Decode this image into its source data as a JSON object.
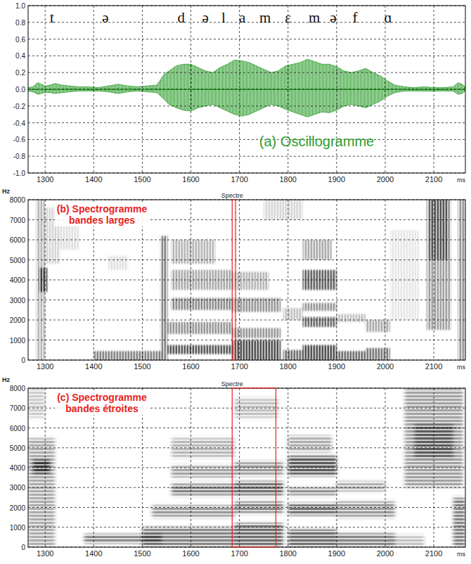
{
  "chart_data": [
    {
      "type": "area",
      "title": "(a) Oscillogramme",
      "color": "#2f9e2f",
      "xlabel": "ms",
      "xlim": [
        1265,
        2165
      ],
      "xticks": [
        1300,
        1400,
        1500,
        1600,
        1700,
        1800,
        1900,
        2000,
        2100
      ],
      "ylim": [
        -1,
        1
      ],
      "yticks": [
        {
          "value": 1,
          "label": "1.0"
        },
        0.8,
        0.6,
        0.4,
        0.2,
        {
          "value": 0,
          "label": "0.0"
        },
        -0.2,
        -0.4,
        -0.6,
        -0.8,
        {
          "value": -1,
          "label": "-1.0"
        }
      ],
      "grid": true,
      "x": [
        1265,
        1275,
        1285,
        1292,
        1300,
        1310,
        1320,
        1335,
        1350,
        1370,
        1390,
        1410,
        1430,
        1450,
        1470,
        1490,
        1510,
        1530,
        1545,
        1555,
        1570,
        1585,
        1600,
        1615,
        1630,
        1645,
        1660,
        1675,
        1690,
        1705,
        1720,
        1735,
        1750,
        1765,
        1780,
        1795,
        1810,
        1825,
        1840,
        1855,
        1870,
        1885,
        1900,
        1915,
        1930,
        1945,
        1960,
        1975,
        1990,
        2005,
        2020,
        2040,
        2060,
        2080,
        2100,
        2120,
        2140,
        2150,
        2158,
        2165
      ],
      "series": [
        {
          "values": [
            0.02,
            0.03,
            0.08,
            0.06,
            0.04,
            0.05,
            0.07,
            0.05,
            0.04,
            0.03,
            0.03,
            0.02,
            0.04,
            0.06,
            0.04,
            0.03,
            0.04,
            0.05,
            0.18,
            0.22,
            0.28,
            0.3,
            0.3,
            0.26,
            0.22,
            0.2,
            0.26,
            0.3,
            0.35,
            0.34,
            0.32,
            0.28,
            0.24,
            0.2,
            0.22,
            0.28,
            0.3,
            0.32,
            0.36,
            0.33,
            0.3,
            0.3,
            0.27,
            0.22,
            0.2,
            0.22,
            0.25,
            0.2,
            0.16,
            0.1,
            0.05,
            0.03,
            0.02,
            0.03,
            0.02,
            0.02,
            0.03,
            0.08,
            0.06,
            0.03
          ]
        },
        {
          "values": [
            -0.02,
            -0.03,
            -0.06,
            -0.05,
            -0.04,
            -0.04,
            -0.05,
            -0.04,
            -0.03,
            -0.02,
            -0.02,
            -0.02,
            -0.03,
            -0.05,
            -0.03,
            -0.02,
            -0.03,
            -0.04,
            -0.12,
            -0.18,
            -0.22,
            -0.25,
            -0.26,
            -0.22,
            -0.2,
            -0.18,
            -0.22,
            -0.26,
            -0.3,
            -0.32,
            -0.3,
            -0.26,
            -0.22,
            -0.18,
            -0.2,
            -0.24,
            -0.27,
            -0.3,
            -0.33,
            -0.3,
            -0.27,
            -0.28,
            -0.25,
            -0.2,
            -0.18,
            -0.2,
            -0.22,
            -0.18,
            -0.14,
            -0.08,
            -0.04,
            -0.02,
            -0.02,
            -0.02,
            -0.02,
            -0.02,
            -0.02,
            -0.06,
            -0.05,
            -0.02
          ]
        }
      ],
      "annotations": [
        {
          "text": "t",
          "x": 1314
        },
        {
          "text": "ə",
          "x": 1424
        },
        {
          "text": "d",
          "x": 1580
        },
        {
          "text": "ə",
          "x": 1630
        },
        {
          "text": "l",
          "x": 1667
        },
        {
          "text": "a",
          "x": 1706
        },
        {
          "text": "m",
          "x": 1753
        },
        {
          "text": "ɛ",
          "x": 1800
        },
        {
          "text": "m",
          "x": 1854
        },
        {
          "text": "ə",
          "x": 1893
        },
        {
          "text": "f",
          "x": 1938
        },
        {
          "text": "ɑ",
          "x": 2006
        }
      ]
    },
    {
      "type": "heatmap",
      "title": "(b) Spectrogramme bandes larges",
      "color": "#e8211b",
      "xlabel": "ms",
      "ylabel": "Hz",
      "xlim": [
        1265,
        2165
      ],
      "xticks": [
        1300,
        1400,
        1500,
        1600,
        1700,
        1800,
        1900,
        2000,
        2100
      ],
      "ylim": [
        0,
        8000
      ],
      "yticks": [
        0,
        1000,
        2000,
        3000,
        4000,
        5000,
        6000,
        7000,
        8000
      ],
      "grid": true,
      "annotations": [
        {
          "text": "Spectre",
          "x": 1685
        }
      ],
      "highlight": [
        1685,
        1692
      ],
      "regions": [
        {
          "x": [
            1282,
            1300
          ],
          "y": [
            0,
            8000
          ],
          "level": 0.35
        },
        {
          "x": [
            1288,
            1305
          ],
          "y": [
            3400,
            4600
          ],
          "level": 0.8
        },
        {
          "x": [
            1300,
            1330
          ],
          "y": [
            4800,
            7600
          ],
          "level": 0.2
        },
        {
          "x": [
            1330,
            1370
          ],
          "y": [
            5500,
            7000
          ],
          "level": 0.15
        },
        {
          "x": [
            1400,
            1540
          ],
          "y": [
            0,
            450
          ],
          "level": 0.6
        },
        {
          "x": [
            1430,
            1470
          ],
          "y": [
            4500,
            5200
          ],
          "level": 0.15
        },
        {
          "x": [
            1538,
            1552
          ],
          "y": [
            0,
            6200
          ],
          "level": 0.6
        },
        {
          "x": [
            1552,
            1685
          ],
          "y": [
            300,
            750
          ],
          "level": 0.8
        },
        {
          "x": [
            1552,
            1685
          ],
          "y": [
            1300,
            1900
          ],
          "level": 0.5
        },
        {
          "x": [
            1560,
            1685
          ],
          "y": [
            2500,
            3100
          ],
          "level": 0.55
        },
        {
          "x": [
            1560,
            1685
          ],
          "y": [
            3500,
            4500
          ],
          "level": 0.4
        },
        {
          "x": [
            1560,
            1650
          ],
          "y": [
            4800,
            6000
          ],
          "level": 0.35
        },
        {
          "x": [
            1685,
            1785
          ],
          "y": [
            0,
            1000
          ],
          "level": 0.85
        },
        {
          "x": [
            1685,
            1785
          ],
          "y": [
            1100,
            1600
          ],
          "level": 0.5
        },
        {
          "x": [
            1685,
            1785
          ],
          "y": [
            2400,
            3100
          ],
          "level": 0.5
        },
        {
          "x": [
            1685,
            1760
          ],
          "y": [
            3500,
            4400
          ],
          "level": 0.35
        },
        {
          "x": [
            1750,
            1830
          ],
          "y": [
            7000,
            8000
          ],
          "level": 0.2
        },
        {
          "x": [
            1790,
            1830
          ],
          "y": [
            0,
            500
          ],
          "level": 0.7
        },
        {
          "x": [
            1790,
            1830
          ],
          "y": [
            2000,
            2600
          ],
          "level": 0.3
        },
        {
          "x": [
            1830,
            1900
          ],
          "y": [
            0,
            750
          ],
          "level": 0.85
        },
        {
          "x": [
            1830,
            1900
          ],
          "y": [
            1650,
            2150
          ],
          "level": 0.7
        },
        {
          "x": [
            1830,
            1900
          ],
          "y": [
            2450,
            2850
          ],
          "level": 0.5
        },
        {
          "x": [
            1830,
            1900
          ],
          "y": [
            3500,
            4500
          ],
          "level": 0.75
        },
        {
          "x": [
            1830,
            1890
          ],
          "y": [
            5000,
            6000
          ],
          "level": 0.4
        },
        {
          "x": [
            1900,
            1960
          ],
          "y": [
            0,
            450
          ],
          "level": 0.7
        },
        {
          "x": [
            1900,
            1960
          ],
          "y": [
            1900,
            2300
          ],
          "level": 0.3
        },
        {
          "x": [
            1960,
            2010
          ],
          "y": [
            0,
            600
          ],
          "level": 0.65
        },
        {
          "x": [
            1960,
            2010
          ],
          "y": [
            1400,
            2000
          ],
          "level": 0.4
        },
        {
          "x": [
            2010,
            2070
          ],
          "y": [
            2000,
            6500
          ],
          "level": 0.12
        },
        {
          "x": [
            2085,
            2135
          ],
          "y": [
            1500,
            8000
          ],
          "level": 0.45
        },
        {
          "x": [
            2090,
            2130
          ],
          "y": [
            5000,
            8000
          ],
          "level": 0.6
        },
        {
          "x": [
            2150,
            2165
          ],
          "y": [
            0,
            8000
          ],
          "level": 0.5
        }
      ]
    },
    {
      "type": "heatmap",
      "title": "(c) Spectrogramme bandes étroites",
      "color": "#e8211b",
      "xlabel": "ms",
      "ylabel": "Hz",
      "xlim": [
        1265,
        2165
      ],
      "xticks": [
        1300,
        1400,
        1500,
        1600,
        1700,
        1800,
        1900,
        2000,
        2100
      ],
      "ylim": [
        0,
        8000
      ],
      "yticks": [
        0,
        1000,
        2000,
        3000,
        4000,
        5000,
        6000,
        7000,
        8000
      ],
      "grid": true,
      "annotations": [
        {
          "text": "Spectre",
          "x": 1685
        }
      ],
      "highlight": [
        1685,
        1775
      ],
      "regions": [
        {
          "x": [
            1265,
            1320
          ],
          "y": [
            0,
            5500
          ],
          "level": 0.4
        },
        {
          "x": [
            1275,
            1310
          ],
          "y": [
            3700,
            4400
          ],
          "level": 0.85
        },
        {
          "x": [
            1265,
            1300
          ],
          "y": [
            6500,
            8000
          ],
          "level": 0.25
        },
        {
          "x": [
            1380,
            1540
          ],
          "y": [
            200,
            650
          ],
          "level": 0.6
        },
        {
          "x": [
            1500,
            1690
          ],
          "y": [
            0,
            1000
          ],
          "level": 0.6
        },
        {
          "x": [
            1520,
            1690
          ],
          "y": [
            1500,
            2100
          ],
          "level": 0.5
        },
        {
          "x": [
            1560,
            1690
          ],
          "y": [
            2600,
            3200
          ],
          "level": 0.6
        },
        {
          "x": [
            1560,
            1690
          ],
          "y": [
            3500,
            4100
          ],
          "level": 0.45
        },
        {
          "x": [
            1560,
            1690
          ],
          "y": [
            4500,
            5500
          ],
          "level": 0.35
        },
        {
          "x": [
            1690,
            1790
          ],
          "y": [
            0,
            1200
          ],
          "level": 0.7
        },
        {
          "x": [
            1690,
            1790
          ],
          "y": [
            1700,
            2300
          ],
          "level": 0.6
        },
        {
          "x": [
            1690,
            1790
          ],
          "y": [
            2600,
            3300
          ],
          "level": 0.7
        },
        {
          "x": [
            1690,
            1790
          ],
          "y": [
            3600,
            4300
          ],
          "level": 0.5
        },
        {
          "x": [
            1690,
            1780
          ],
          "y": [
            6500,
            7500
          ],
          "level": 0.3
        },
        {
          "x": [
            1800,
            1900
          ],
          "y": [
            0,
            900
          ],
          "level": 0.7
        },
        {
          "x": [
            1800,
            1900
          ],
          "y": [
            1600,
            2200
          ],
          "level": 0.7
        },
        {
          "x": [
            1800,
            1900
          ],
          "y": [
            2600,
            3000
          ],
          "level": 0.55
        },
        {
          "x": [
            1800,
            1900
          ],
          "y": [
            3600,
            4600
          ],
          "level": 0.8
        },
        {
          "x": [
            1800,
            1890
          ],
          "y": [
            4800,
            5600
          ],
          "level": 0.4
        },
        {
          "x": [
            1900,
            2020
          ],
          "y": [
            0,
            700
          ],
          "level": 0.6
        },
        {
          "x": [
            1900,
            2020
          ],
          "y": [
            1500,
            2300
          ],
          "level": 0.5
        },
        {
          "x": [
            1900,
            2000
          ],
          "y": [
            2800,
            3300
          ],
          "level": 0.4
        },
        {
          "x": [
            2020,
            2080
          ],
          "y": [
            0,
            600
          ],
          "level": 0.3
        },
        {
          "x": [
            2040,
            2160
          ],
          "y": [
            3000,
            8000
          ],
          "level": 0.45
        },
        {
          "x": [
            2060,
            2140
          ],
          "y": [
            4500,
            6200
          ],
          "level": 0.55
        },
        {
          "x": [
            2140,
            2165
          ],
          "y": [
            0,
            2500
          ],
          "level": 0.6
        }
      ]
    }
  ]
}
